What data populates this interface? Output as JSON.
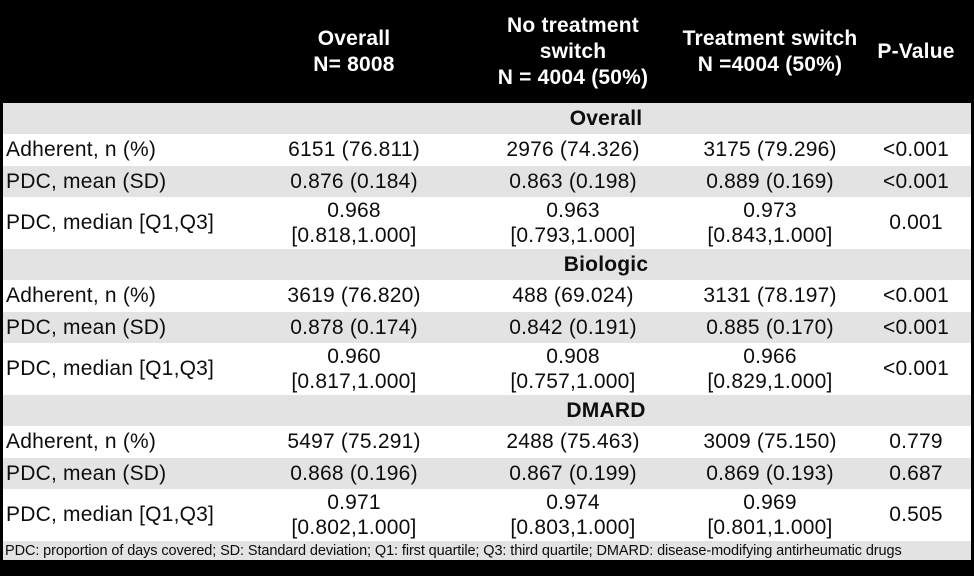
{
  "colors": {
    "header_bg": "#000000",
    "header_text": "#ffffff",
    "stripe_bg": "#e3e3e3",
    "row_bg": "#ffffff",
    "body_text": "#0d0d0d"
  },
  "table": {
    "column_headers": [
      "",
      "Overall\nN= 8008",
      "No treatment\nswitch\nN = 4004 (50%)",
      "Treatment switch\nN =4004 (50%)",
      "P-Value"
    ],
    "sections": [
      {
        "title": "Overall",
        "rows": [
          {
            "label": "Adherent, n (%)",
            "values": [
              "6151 (76.811)",
              "2976 (74.326)",
              "3175 (79.296)",
              "<0.001"
            ]
          },
          {
            "label": "PDC, mean (SD)",
            "values": [
              "0.876 (0.184)",
              "0.863 (0.198)",
              "0.889 (0.169)",
              "<0.001"
            ]
          },
          {
            "label": "PDC, median [Q1,Q3]",
            "values": [
              "0.968\n[0.818,1.000]",
              "0.963\n[0.793,1.000]",
              "0.973\n[0.843,1.000]",
              "0.001"
            ]
          }
        ]
      },
      {
        "title": "Biologic",
        "rows": [
          {
            "label": "Adherent, n (%)",
            "values": [
              "3619 (76.820)",
              "488 (69.024)",
              "3131 (78.197)",
              "<0.001"
            ]
          },
          {
            "label": "PDC, mean (SD)",
            "values": [
              "0.878 (0.174)",
              "0.842 (0.191)",
              "0.885 (0.170)",
              "<0.001"
            ]
          },
          {
            "label": "PDC, median [Q1,Q3]",
            "values": [
              "0.960\n[0.817,1.000]",
              "0.908\n[0.757,1.000]",
              "0.966\n[0.829,1.000]",
              "<0.001"
            ]
          }
        ]
      },
      {
        "title": "DMARD",
        "rows": [
          {
            "label": "Adherent, n (%)",
            "values": [
              "5497 (75.291)",
              "2488 (75.463)",
              "3009 (75.150)",
              "0.779"
            ]
          },
          {
            "label": "PDC, mean (SD)",
            "values": [
              "0.868 (0.196)",
              "0.867 (0.199)",
              "0.869 (0.193)",
              "0.687"
            ]
          },
          {
            "label": "PDC, median [Q1,Q3]",
            "values": [
              "0.971\n[0.802,1.000]",
              "0.974\n[0.803,1.000]",
              "0.969\n[0.801,1.000]",
              "0.505"
            ]
          }
        ]
      }
    ],
    "footnote": "PDC: proportion of days covered; SD: Standard deviation; Q1: first quartile; Q3: third quartile; DMARD: disease-modifying antirheumatic drugs"
  }
}
